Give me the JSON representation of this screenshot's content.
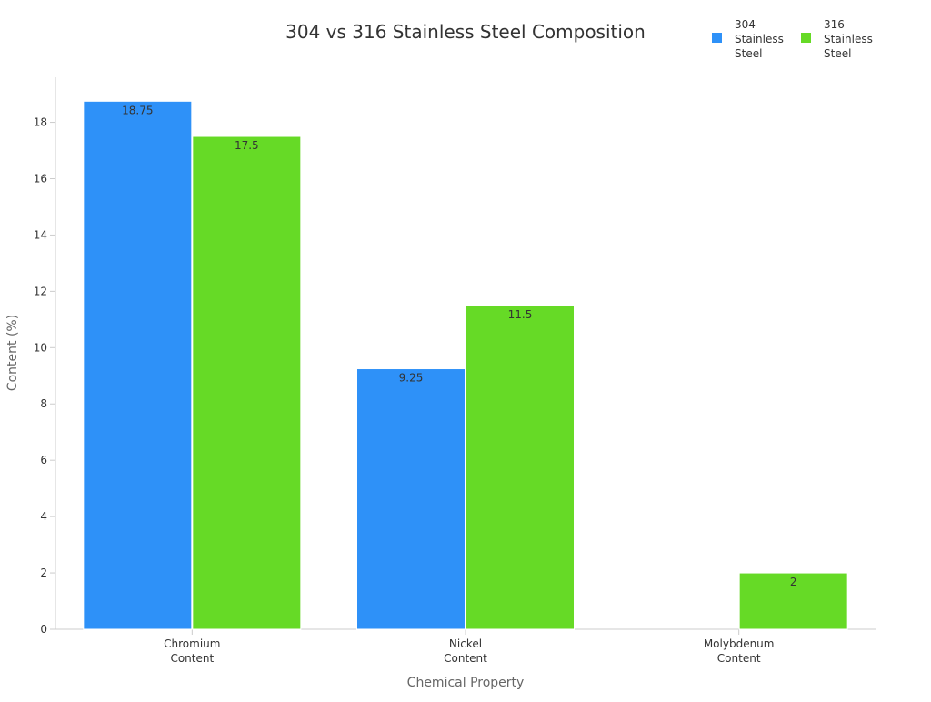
{
  "chart_data": {
    "type": "bar",
    "title": "304 vs 316 Stainless Steel Composition",
    "xlabel": "Chemical Property",
    "ylabel": "Content (%)",
    "categories": [
      [
        "Chromium",
        "Content"
      ],
      [
        "Nickel",
        "Content"
      ],
      [
        "Molybdenum",
        "Content"
      ]
    ],
    "series": [
      {
        "name": [
          "304",
          "Stainless",
          "Steel"
        ],
        "color": "#2e91f8",
        "values": [
          18.75,
          9.25,
          0
        ],
        "labels": [
          "18.75",
          "9.25",
          ""
        ]
      },
      {
        "name": [
          "316",
          "Stainless",
          "Steel"
        ],
        "color": "#66da26",
        "values": [
          17.5,
          11.5,
          2
        ],
        "labels": [
          "17.5",
          "11.5",
          "2"
        ]
      }
    ],
    "ylim": [
      0,
      19.6
    ],
    "yticks": [
      0,
      2,
      4,
      6,
      8,
      10,
      12,
      14,
      16,
      18
    ],
    "grid": false,
    "legend_position": "top-right"
  }
}
